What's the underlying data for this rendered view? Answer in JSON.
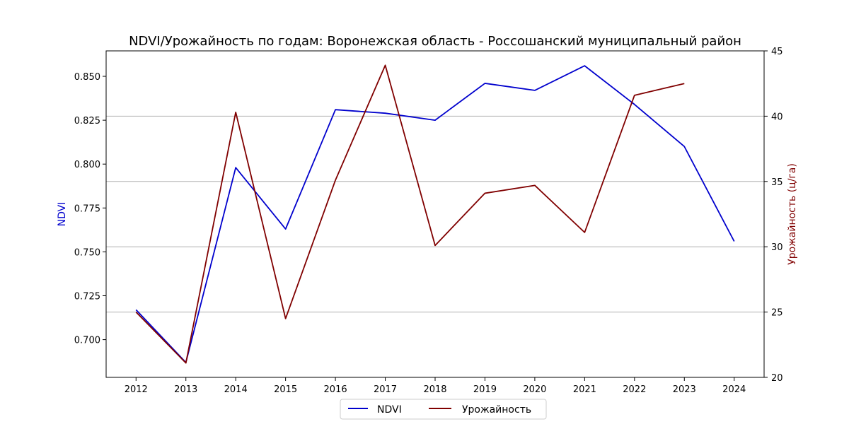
{
  "chart_data": {
    "type": "line",
    "title": "NDVI/Урожайность по годам: Воронежская область - Россошанский муниципальный район",
    "xlabel": "",
    "ylabel_left": "NDVI",
    "ylabel_right": "Урожайность (ц/га)",
    "x": [
      2012,
      2013,
      2014,
      2015,
      2016,
      2017,
      2018,
      2019,
      2020,
      2021,
      2022,
      2023,
      2024
    ],
    "x_ticks": [
      "2012",
      "2013",
      "2014",
      "2015",
      "2016",
      "2017",
      "2018",
      "2019",
      "2020",
      "2021",
      "2022",
      "2023",
      "2024"
    ],
    "ylim_left": [
      0.6785,
      0.8645
    ],
    "ylim_right": [
      20,
      45
    ],
    "y_ticks_left": [
      "0.700",
      "0.725",
      "0.750",
      "0.775",
      "0.800",
      "0.825",
      "0.850"
    ],
    "y_ticks_right": [
      "20",
      "25",
      "30",
      "35",
      "40",
      "45"
    ],
    "grid": "horizontal, right axis",
    "legend_position": "bottom-center",
    "series": [
      {
        "name": "NDVI",
        "axis": "left",
        "color": "#0000cd",
        "values": [
          0.717,
          0.687,
          0.798,
          0.763,
          0.831,
          0.829,
          0.825,
          0.846,
          0.842,
          0.856,
          0.834,
          0.81,
          0.756
        ]
      },
      {
        "name": "Урожайность",
        "axis": "right",
        "color": "#800000",
        "values": [
          25.0,
          21.1,
          40.3,
          24.5,
          35.1,
          43.9,
          30.1,
          34.1,
          34.7,
          31.1,
          41.6,
          42.5,
          null
        ]
      }
    ]
  }
}
